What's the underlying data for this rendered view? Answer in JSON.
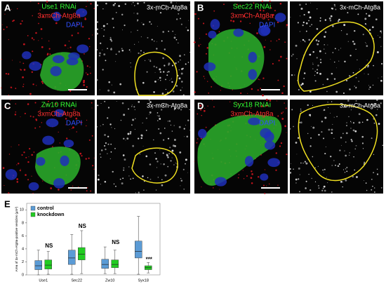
{
  "panels": [
    {
      "label": "A",
      "rnai": "Use1 RNAi",
      "marker": "3xmCh-Atg8a",
      "dapi": "DAPI",
      "gray_label": "3x-mCh-Atg8a"
    },
    {
      "label": "B",
      "rnai": "Sec22 RNAi",
      "marker": "3xmCh-Atg8a",
      "dapi": "DAPI",
      "gray_label": "3x-mCh-Atg8a"
    },
    {
      "label": "C",
      "rnai": "Zw10 RNAi",
      "marker": "3xmCh-Atg8a",
      "dapi": "DAPI",
      "gray_label": "3x-mCh-Atg8a"
    },
    {
      "label": "D",
      "rnai": "Syx18 RNAi",
      "marker": "3xmCh-Atg8a",
      "dapi": "DAPI",
      "gray_label": "3x-mCh-Atg8a"
    }
  ],
  "chart_data": {
    "type": "box",
    "panel_label": "E",
    "ylabel": "Area of 3x-mCh-Atg8a-positive vesicles (µm²)",
    "categories": [
      "Use1",
      "Sec22",
      "Zw10",
      "Syx18"
    ],
    "series": [
      {
        "name": "control",
        "color": "#5b9bd5",
        "values": [
          [
            0,
            0.8,
            1.4,
            2.2,
            3.8
          ],
          [
            0.1,
            1.6,
            2.6,
            3.8,
            6.2
          ],
          [
            0.2,
            1.0,
            1.6,
            2.4,
            4.3
          ],
          [
            0.1,
            2.6,
            3.6,
            5.2,
            9.0
          ]
        ]
      },
      {
        "name": "knockdown",
        "color": "#22cc22",
        "values": [
          [
            0.1,
            0.9,
            1.5,
            2.3,
            3.6
          ],
          [
            0.2,
            2.3,
            3.2,
            4.2,
            6.8
          ],
          [
            0.2,
            1.1,
            1.6,
            2.3,
            3.8
          ],
          [
            0.3,
            0.8,
            1.1,
            1.4,
            1.9
          ]
        ]
      }
    ],
    "annotations": [
      "NS",
      "NS",
      "NS",
      "***"
    ],
    "ylim": [
      0,
      11
    ],
    "yticks": [
      0,
      2,
      4,
      6,
      8,
      10
    ],
    "legend": "upper-left"
  }
}
